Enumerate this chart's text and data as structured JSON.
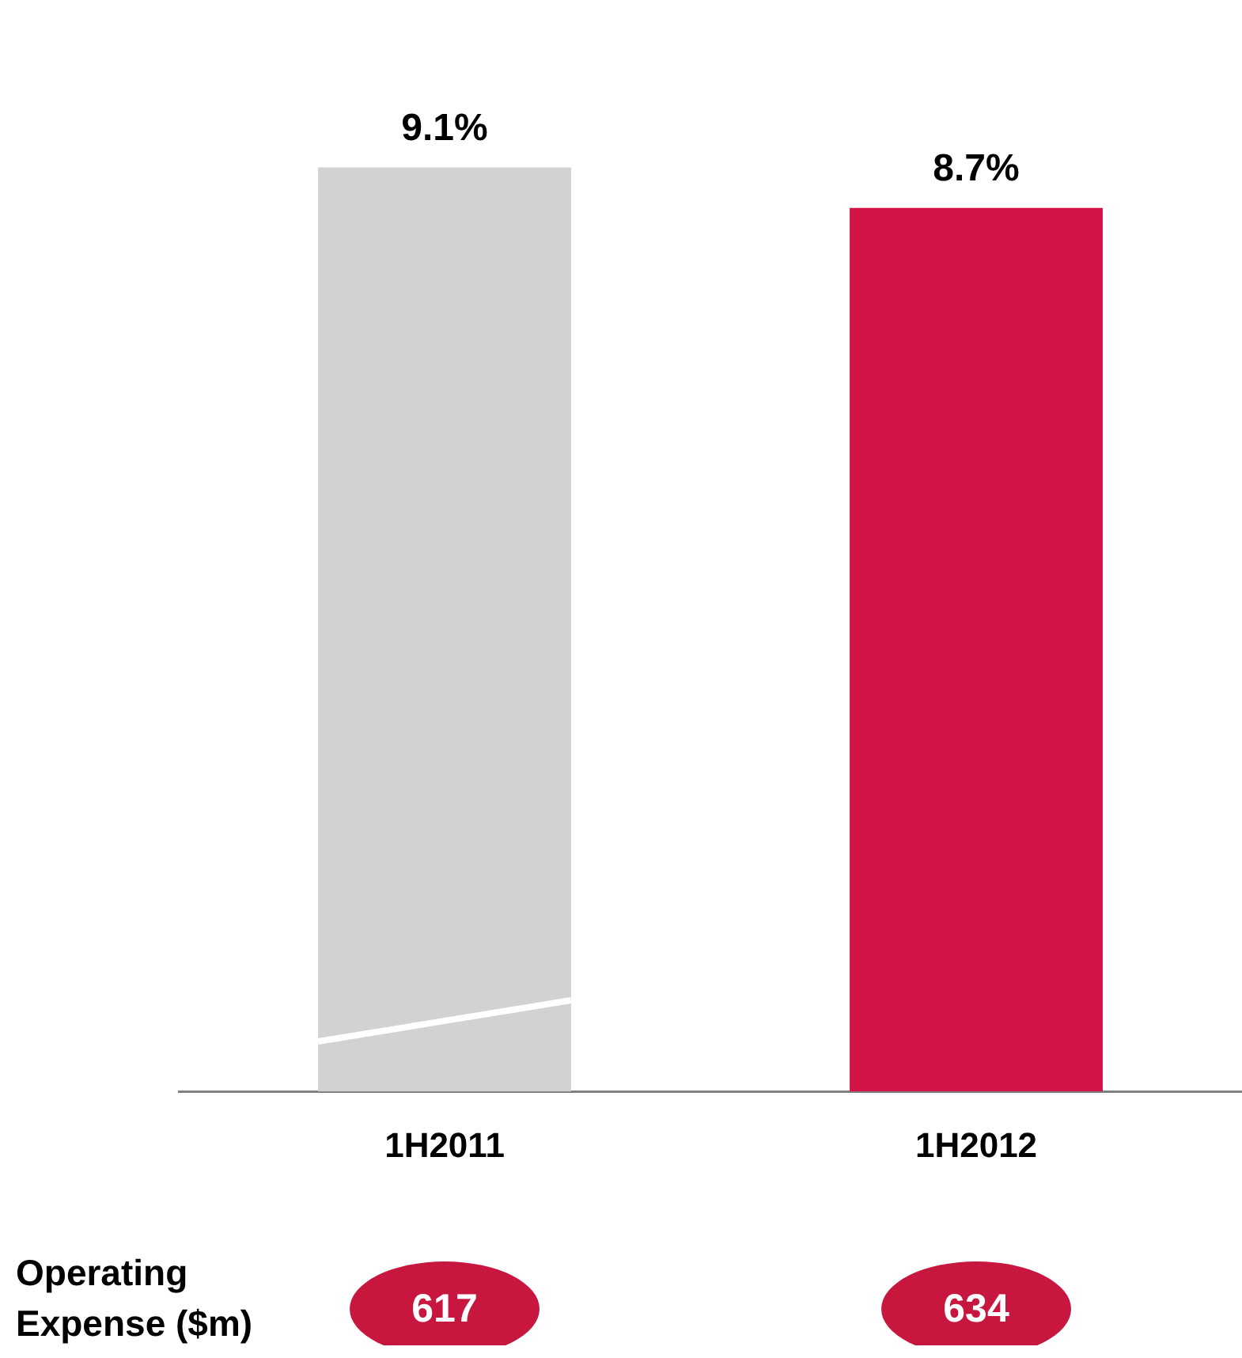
{
  "chart_data": {
    "type": "bar",
    "categories": [
      "1H2011",
      "1H2012"
    ],
    "values": [
      9.1,
      8.7
    ],
    "colors": [
      "#d1d2d4",
      "#d31245"
    ],
    "value_labels": [
      "9.1%",
      "8.7%"
    ],
    "annotations": [
      "Operating Expense ($m)",
      "617",
      "634"
    ]
  }
}
